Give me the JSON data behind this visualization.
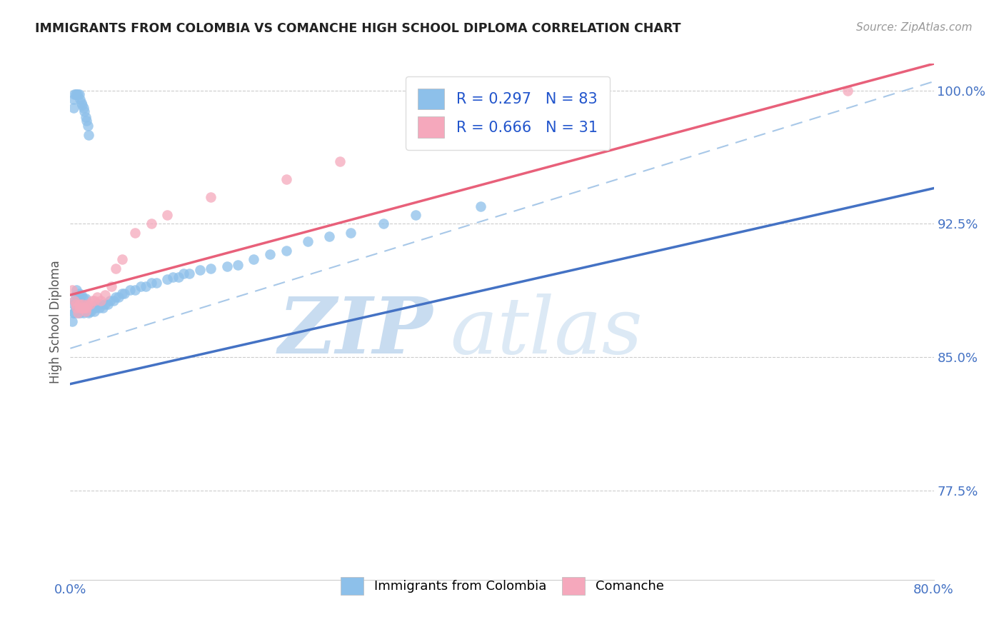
{
  "title": "IMMIGRANTS FROM COLOMBIA VS COMANCHE HIGH SCHOOL DIPLOMA CORRELATION CHART",
  "source": "Source: ZipAtlas.com",
  "ylabel": "High School Diploma",
  "xlim": [
    0.0,
    0.8
  ],
  "ylim": [
    0.725,
    1.015
  ],
  "ytick_vals": [
    0.775,
    0.85,
    0.925,
    1.0
  ],
  "ytick_labels": [
    "77.5%",
    "85.0%",
    "92.5%",
    "100.0%"
  ],
  "xtick_vals": [
    0.0,
    0.1,
    0.2,
    0.3,
    0.4,
    0.5,
    0.6,
    0.7,
    0.8
  ],
  "xtick_labels": [
    "0.0%",
    "",
    "",
    "",
    "",
    "",
    "",
    "",
    "80.0%"
  ],
  "color_blue": "#8DC0EA",
  "color_pink": "#F5A8BC",
  "color_blue_line": "#4472C4",
  "color_pink_line": "#E8607A",
  "color_dashed": "#A8C8E8",
  "watermark_zip": "ZIP",
  "watermark_atlas": "atlas",
  "watermark_color": "#DCE9F5",
  "blue_line_x0": 0.0,
  "blue_line_y0": 0.835,
  "blue_line_x1": 0.8,
  "blue_line_y1": 0.945,
  "pink_line_x0": 0.0,
  "pink_line_y0": 0.885,
  "pink_line_x1": 0.8,
  "pink_line_y1": 1.015,
  "dash_line_x0": 0.0,
  "dash_line_y0": 0.855,
  "dash_line_x1": 0.8,
  "dash_line_y1": 1.005,
  "blue_scatter_x": [
    0.002,
    0.003,
    0.003,
    0.004,
    0.004,
    0.005,
    0.005,
    0.006,
    0.006,
    0.007,
    0.007,
    0.008,
    0.008,
    0.009,
    0.009,
    0.01,
    0.01,
    0.011,
    0.012,
    0.012,
    0.013,
    0.014,
    0.014,
    0.015,
    0.016,
    0.017,
    0.018,
    0.019,
    0.02,
    0.022,
    0.023,
    0.025,
    0.027,
    0.028,
    0.03,
    0.032,
    0.035,
    0.037,
    0.04,
    0.042,
    0.045,
    0.048,
    0.05,
    0.055,
    0.06,
    0.065,
    0.07,
    0.075,
    0.08,
    0.09,
    0.095,
    0.1,
    0.105,
    0.11,
    0.12,
    0.13,
    0.145,
    0.155,
    0.17,
    0.185,
    0.2,
    0.22,
    0.24,
    0.26,
    0.29,
    0.32,
    0.38,
    0.003,
    0.003,
    0.004,
    0.005,
    0.006,
    0.007,
    0.008,
    0.009,
    0.01,
    0.011,
    0.012,
    0.013,
    0.014,
    0.015,
    0.016,
    0.017
  ],
  "blue_scatter_y": [
    0.87,
    0.875,
    0.88,
    0.875,
    0.882,
    0.878,
    0.885,
    0.88,
    0.888,
    0.875,
    0.883,
    0.878,
    0.886,
    0.875,
    0.882,
    0.876,
    0.885,
    0.88,
    0.875,
    0.883,
    0.878,
    0.876,
    0.883,
    0.878,
    0.876,
    0.875,
    0.878,
    0.876,
    0.878,
    0.876,
    0.878,
    0.88,
    0.878,
    0.88,
    0.878,
    0.88,
    0.88,
    0.882,
    0.882,
    0.884,
    0.884,
    0.886,
    0.886,
    0.888,
    0.888,
    0.89,
    0.89,
    0.892,
    0.892,
    0.894,
    0.895,
    0.895,
    0.897,
    0.897,
    0.899,
    0.9,
    0.901,
    0.902,
    0.905,
    0.908,
    0.91,
    0.915,
    0.918,
    0.92,
    0.925,
    0.93,
    0.935,
    0.99,
    0.995,
    0.998,
    0.998,
    0.998,
    0.998,
    0.998,
    0.995,
    0.993,
    0.992,
    0.99,
    0.988,
    0.985,
    0.983,
    0.98,
    0.975
  ],
  "pink_scatter_x": [
    0.002,
    0.004,
    0.005,
    0.006,
    0.007,
    0.008,
    0.009,
    0.01,
    0.011,
    0.012,
    0.013,
    0.014,
    0.015,
    0.016,
    0.018,
    0.02,
    0.022,
    0.025,
    0.028,
    0.032,
    0.038,
    0.042,
    0.048,
    0.06,
    0.075,
    0.09,
    0.13,
    0.2,
    0.25,
    0.35,
    0.72
  ],
  "pink_scatter_y": [
    0.888,
    0.882,
    0.88,
    0.878,
    0.875,
    0.88,
    0.878,
    0.878,
    0.88,
    0.878,
    0.878,
    0.876,
    0.878,
    0.88,
    0.88,
    0.882,
    0.882,
    0.884,
    0.882,
    0.885,
    0.89,
    0.9,
    0.905,
    0.92,
    0.925,
    0.93,
    0.94,
    0.95,
    0.96,
    0.975,
    1.0
  ]
}
